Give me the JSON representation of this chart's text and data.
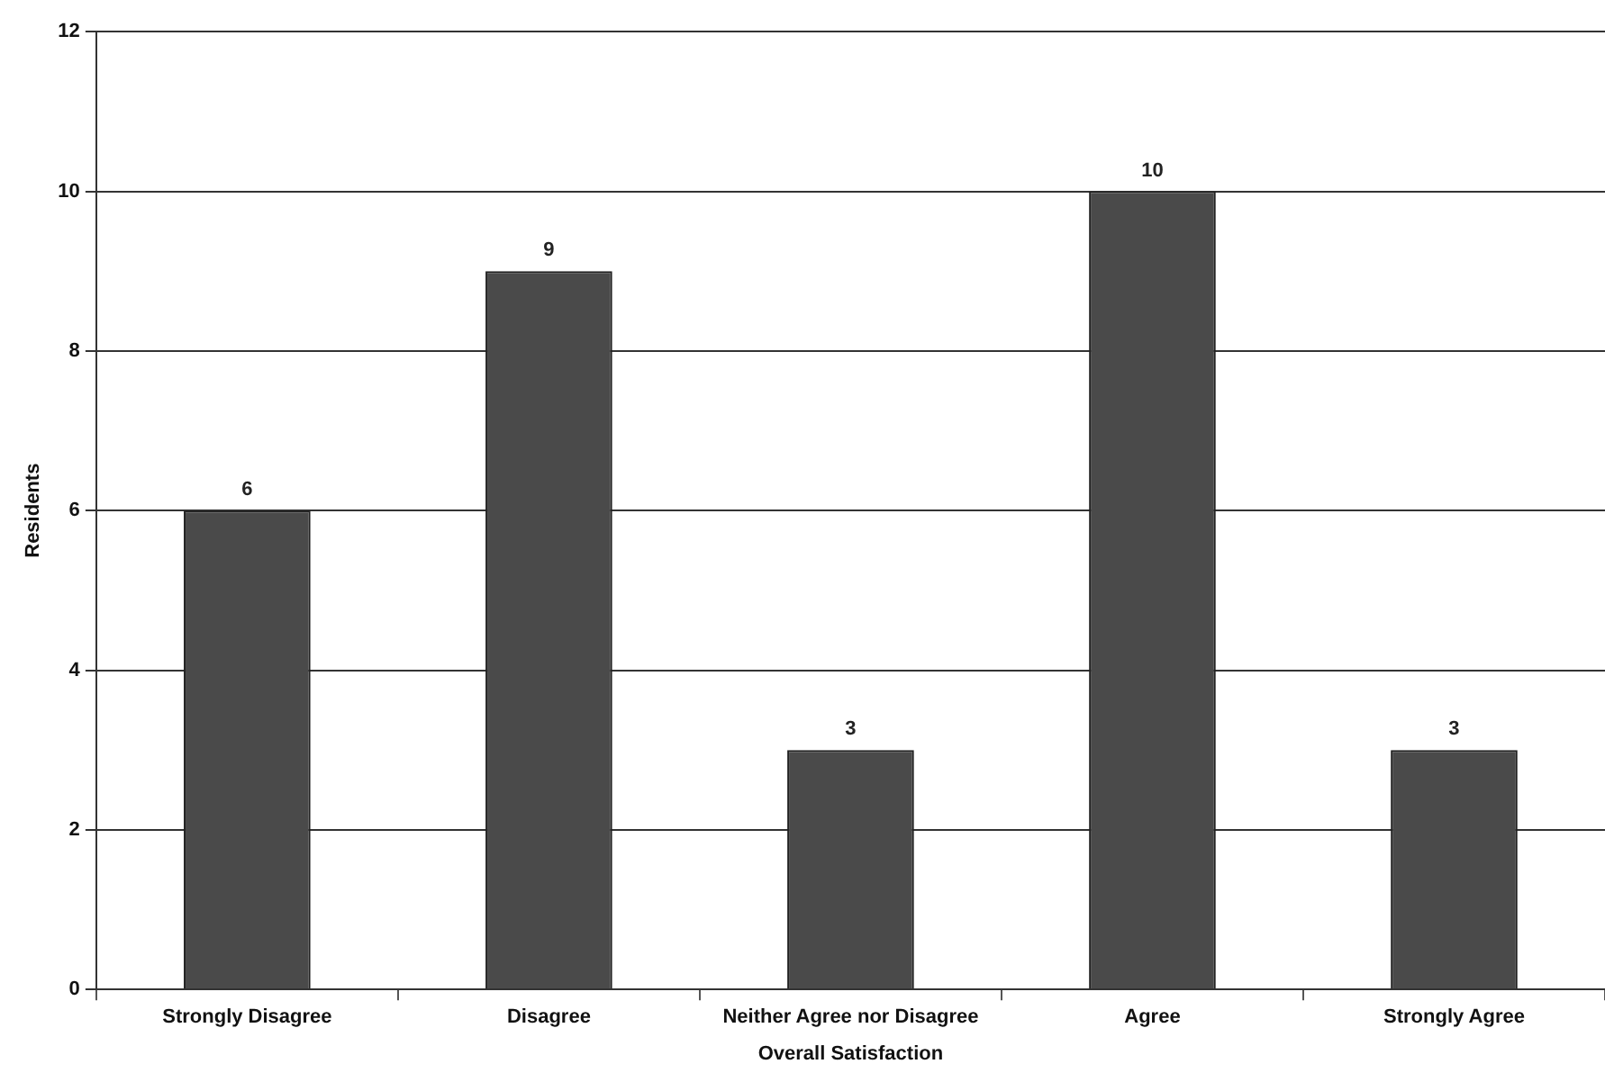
{
  "chart_data": {
    "type": "bar",
    "xlabel": "Overall Satisfaction",
    "ylabel": "Residents",
    "categories": [
      "Strongly Disagree",
      "Disagree",
      "Neither Agree nor Disagree",
      "Agree",
      "Strongly Agree"
    ],
    "values": [
      6,
      9,
      3,
      10,
      3
    ],
    "color": "#4a4a4a",
    "ylim": [
      0,
      12
    ],
    "yticks": [
      0,
      2,
      4,
      6,
      8,
      10,
      12
    ],
    "grid": "y",
    "data_labels": true
  }
}
